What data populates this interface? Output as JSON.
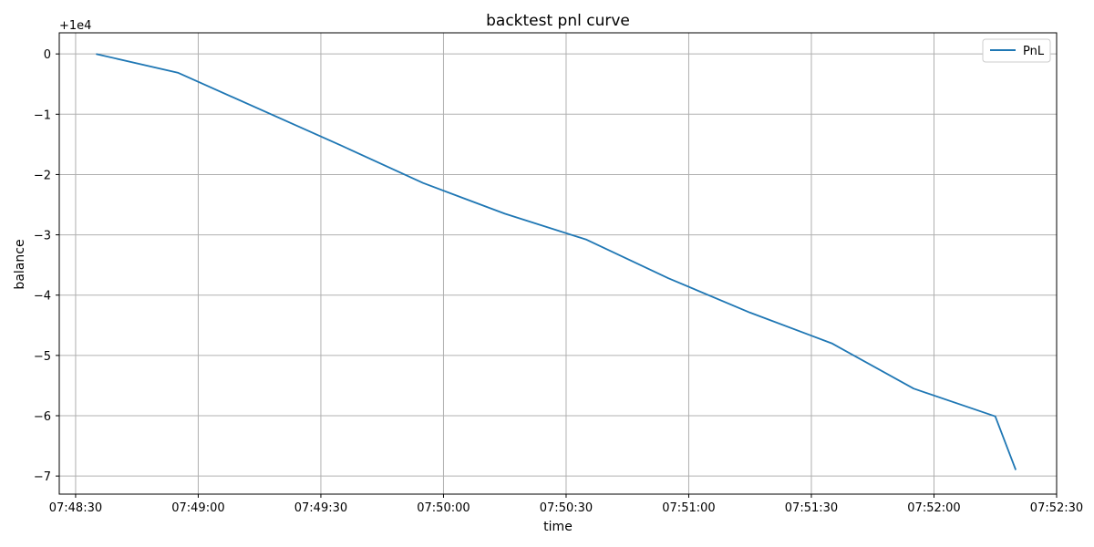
{
  "chart_data": {
    "type": "line",
    "title": "backtest pnl curve",
    "xlabel": "time",
    "ylabel": "balance",
    "y_offset_label": "+1e4",
    "grid": true,
    "legend": {
      "position": "top-right",
      "entries": [
        "PnL"
      ]
    },
    "xlim": [
      "07:48:26",
      "07:52:30"
    ],
    "ylim": [
      -7.3,
      0.35
    ],
    "x_ticks": [
      "07:48:30",
      "07:49:00",
      "07:49:30",
      "07:50:00",
      "07:50:30",
      "07:51:00",
      "07:51:30",
      "07:52:00",
      "07:52:30"
    ],
    "y_ticks": [
      0,
      -1,
      -2,
      -3,
      -4,
      -5,
      -6,
      -7
    ],
    "y_tick_labels": [
      "0",
      "−1",
      "−2",
      "−3",
      "−4",
      "−5",
      "−6",
      "−7"
    ],
    "series": [
      {
        "name": "PnL",
        "color": "#1f77b4",
        "x": [
          "07:48:35",
          "07:48:55",
          "07:49:35",
          "07:49:55",
          "07:50:15",
          "07:50:35",
          "07:50:55",
          "07:51:15",
          "07:51:35",
          "07:51:55",
          "07:52:15",
          "07:52:20"
        ],
        "y": [
          0,
          -0.31,
          -1.52,
          -2.14,
          -2.65,
          -3.08,
          -3.72,
          -4.29,
          -4.8,
          -5.55,
          -6.01,
          -6.9
        ]
      }
    ]
  }
}
